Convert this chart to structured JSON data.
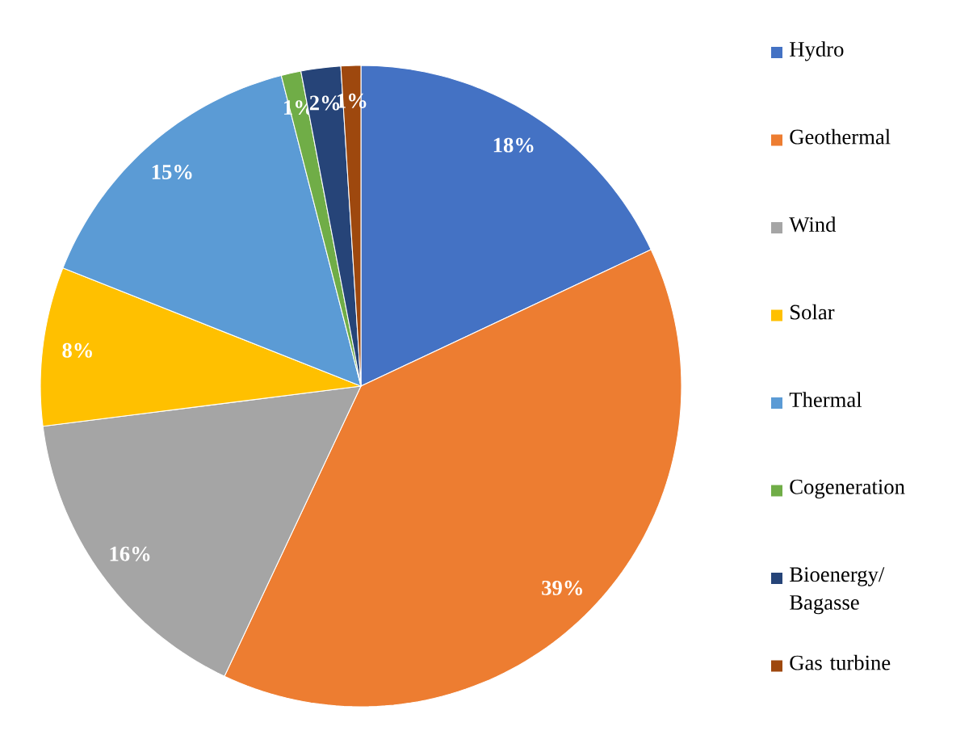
{
  "chart_data": {
    "type": "pie",
    "categories": [
      "Hydro",
      "Geothermal",
      "Wind",
      "Solar",
      "Thermal",
      "Cogeneration",
      "Bioenergy/ Bagasse",
      "Gas turbine"
    ],
    "values": [
      18,
      39,
      16,
      8,
      15,
      1,
      2,
      1
    ],
    "value_labels": [
      "18%",
      "39%",
      "16%",
      "8%",
      "15%",
      "1%",
      "2%",
      "1%"
    ],
    "colors": [
      "#4472c4",
      "#ed7d31",
      "#a5a5a5",
      "#ffc000",
      "#5b9bd5",
      "#70ad47",
      "#264478",
      "#9e480e"
    ],
    "legend": "right"
  }
}
